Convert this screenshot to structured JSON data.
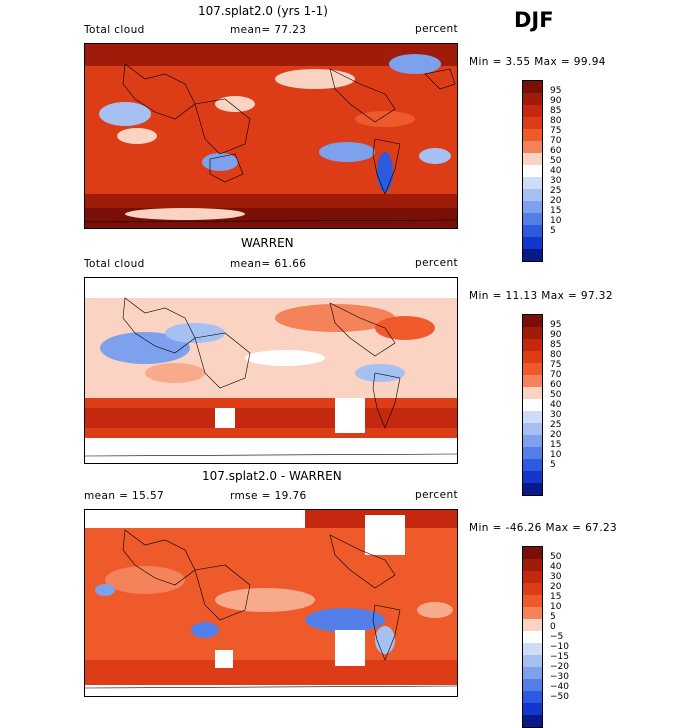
{
  "season": "DJF",
  "panels": [
    {
      "title": "107.splat2.0 (yrs 1-1)",
      "left_label": "Total cloud",
      "stat_label": "mean=  77.23",
      "unit_label": "percent",
      "minmax": "Min =   3.55 Max =  99.94",
      "colorbar_labels": [
        "95",
        "90",
        "85",
        "80",
        "75",
        "70",
        "60",
        "50",
        "40",
        "30",
        "25",
        "20",
        "15",
        "10",
        "5"
      ]
    },
    {
      "title": "WARREN",
      "left_label": "Total cloud",
      "stat_label": "mean=  61.66",
      "unit_label": "percent",
      "minmax": "Min =  11.13 Max =  97.32",
      "colorbar_labels": [
        "95",
        "90",
        "85",
        "80",
        "75",
        "70",
        "60",
        "50",
        "40",
        "30",
        "25",
        "20",
        "15",
        "10",
        "5"
      ]
    },
    {
      "title": "107.splat2.0 - WARREN",
      "left_label": "mean =  15.57",
      "stat_label": "rmse =  19.76",
      "unit_label": "percent",
      "minmax": "Min = -46.26 Max =  67.23",
      "colorbar_labels": [
        "50",
        "40",
        "30",
        "20",
        "15",
        "10",
        "5",
        "0",
        "−5",
        "−10",
        "−15",
        "−20",
        "−30",
        "−40",
        "−50"
      ]
    }
  ],
  "colors": {
    "scale": [
      "#7a0f08",
      "#a01c0a",
      "#c4280f",
      "#dc3d17",
      "#ee5a2a",
      "#f4835a",
      "#f7aa8c",
      "#fbd3c2",
      "#ffffff",
      "#cfdcf8",
      "#a6c0f2",
      "#7ea1ee",
      "#547fe8",
      "#2d5be0",
      "#1336cf",
      "#081a8a"
    ]
  }
}
